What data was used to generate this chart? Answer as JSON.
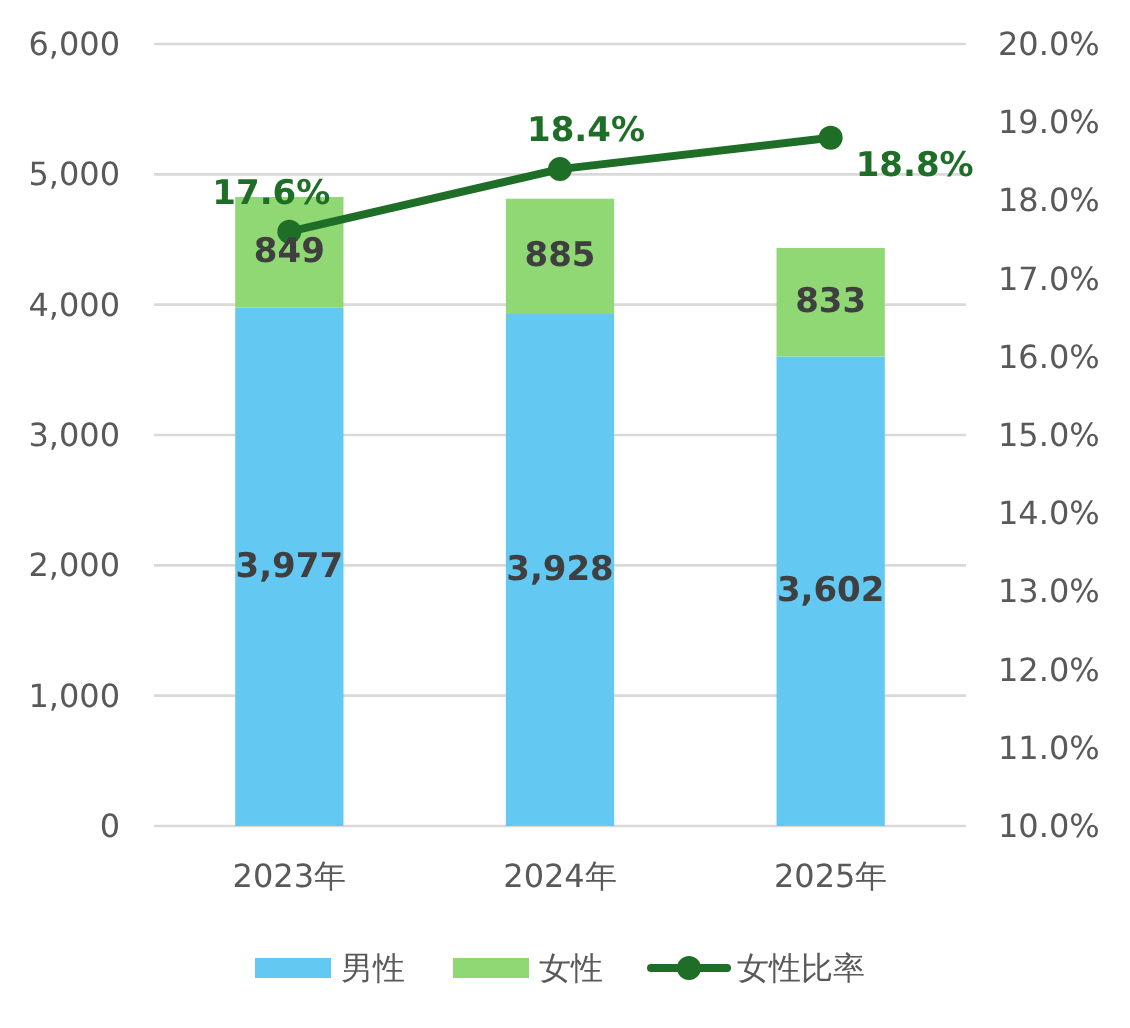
{
  "chart_data": {
    "type": "bar",
    "stacked": true,
    "categories": [
      "2023年",
      "2024年",
      "2025年"
    ],
    "series": [
      {
        "name": "男性",
        "color": "#63c8f2",
        "values": [
          3977,
          3928,
          3602
        ],
        "value_labels": [
          "3,977",
          "3,928",
          "3,602"
        ]
      },
      {
        "name": "女性",
        "color": "#8fd873",
        "values": [
          849,
          885,
          833
        ],
        "value_labels": [
          "849",
          "885",
          "833"
        ]
      },
      {
        "name": "女性比率",
        "type": "line",
        "axis": "y2",
        "color": "#1e6e28",
        "marker": "circle",
        "values": [
          17.6,
          18.4,
          18.8
        ],
        "value_labels": [
          "17.6%",
          "18.4%",
          "18.8%"
        ]
      }
    ],
    "ylim": [
      0,
      6000
    ],
    "yticks": [
      0,
      {
        "value": 1000,
        "label": "1,000"
      },
      {
        "value": 2000,
        "label": "2,000"
      },
      {
        "value": 3000,
        "label": "3,000"
      },
      {
        "value": 4000,
        "label": "4,000"
      },
      {
        "value": 5000,
        "label": "5,000"
      },
      {
        "value": 6000,
        "label": "6,000"
      }
    ],
    "y2lim": [
      10,
      20
    ],
    "y2ticks": [
      {
        "value": 10,
        "label": "10.0%"
      },
      {
        "value": 11,
        "label": "11.0%"
      },
      {
        "value": 12,
        "label": "12.0%"
      },
      {
        "value": 13,
        "label": "13.0%"
      },
      {
        "value": 14,
        "label": "14.0%"
      },
      {
        "value": 15,
        "label": "15.0%"
      },
      {
        "value": 16,
        "label": "16.0%"
      },
      {
        "value": 17,
        "label": "17.0%"
      },
      {
        "value": 18,
        "label": "18.0%"
      },
      {
        "value": 19,
        "label": "19.0%"
      },
      {
        "value": 20,
        "label": "20.0%"
      }
    ],
    "grid": "y",
    "legend": "bottom"
  }
}
